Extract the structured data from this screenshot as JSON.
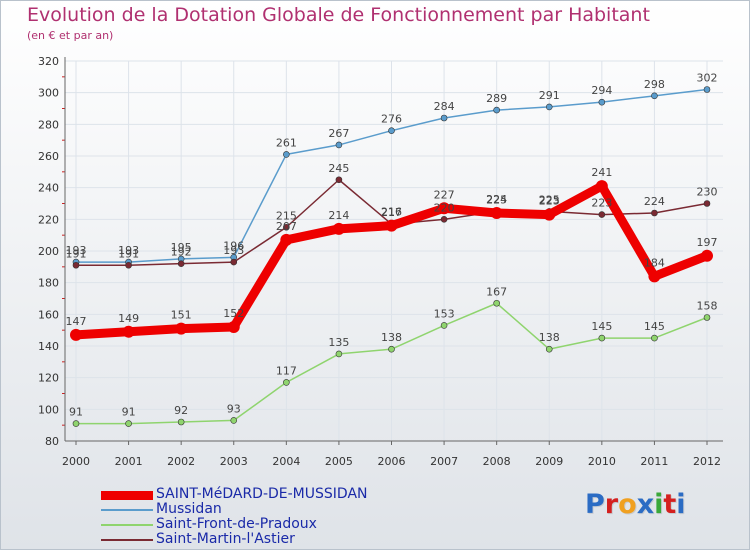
{
  "title": "Evolution de la Dotation Globale de Fonctionnement par Habitant",
  "subtitle": "(en € et par an)",
  "logo": {
    "text": "Proxiti",
    "colors": [
      "#2b6cc4",
      "#d4201f",
      "#f0a020",
      "#2b6cc4",
      "#3aa83a",
      "#d4201f",
      "#2b6cc4"
    ]
  },
  "chart_data": {
    "type": "line",
    "title": "Evolution de la Dotation Globale de Fonctionnement par Habitant",
    "ylabel": "(en € et par an)",
    "x": [
      2000,
      2001,
      2002,
      2003,
      2004,
      2005,
      2006,
      2007,
      2008,
      2009,
      2010,
      2011,
      2012
    ],
    "xticks": [
      "2000",
      "2001",
      "2002",
      "2003",
      "2004",
      "2005",
      "2006",
      "2007",
      "2008",
      "2009",
      "2010",
      "2011",
      "2012"
    ],
    "ylim": [
      80,
      320
    ],
    "yticks": [
      80,
      100,
      120,
      140,
      160,
      180,
      200,
      220,
      240,
      260,
      280,
      300,
      320
    ],
    "grid": true,
    "legend": "bottom-left",
    "series": [
      {
        "name": "Mussidan",
        "color": "#5a9ccc",
        "emphasis": false,
        "values": [
          193,
          193,
          195,
          196,
          261,
          267,
          276,
          284,
          289,
          291,
          294,
          298,
          302
        ]
      },
      {
        "name": "Saint-Front-de-Pradoux",
        "color": "#8fd46e",
        "emphasis": false,
        "values": [
          91,
          91,
          92,
          93,
          117,
          135,
          138,
          153,
          167,
          138,
          145,
          145,
          158
        ]
      },
      {
        "name": "Saint-Martin-l'Astier",
        "color": "#7a2a33",
        "emphasis": false,
        "values": [
          191,
          191,
          192,
          193,
          215,
          245,
          217,
          220,
          225,
          225,
          223,
          224,
          230
        ]
      },
      {
        "name": "SAINT-MéDARD-DE-MUSSIDAN",
        "color": "#ee0000",
        "emphasis": true,
        "values": [
          147,
          149,
          151,
          152,
          207,
          214,
          216,
          227,
          224,
          223,
          241,
          184,
          197
        ]
      }
    ],
    "legend_order": [
      "SAINT-MéDARD-DE-MUSSIDAN",
      "Mussidan",
      "Saint-Front-de-Pradoux",
      "Saint-Martin-l'Astier"
    ]
  }
}
